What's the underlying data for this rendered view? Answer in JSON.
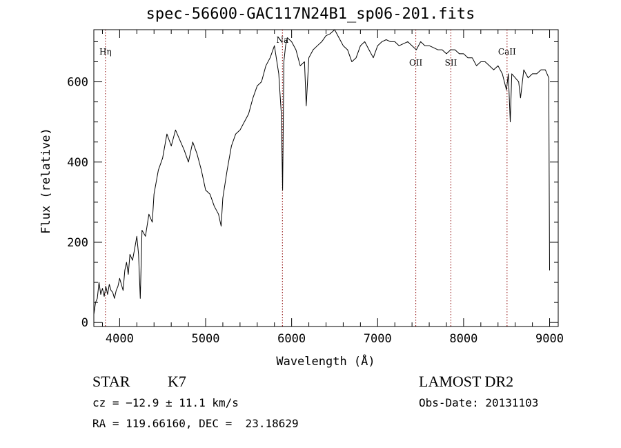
{
  "chart_data": {
    "type": "line",
    "title": "spec-56600-GAC117N24B1_sp06-201.fits",
    "xlabel": "Wavelength (Å)",
    "ylabel": "Flux (relative)",
    "xlim": [
      3700,
      9100
    ],
    "ylim": [
      -10,
      730
    ],
    "xticks": [
      4000,
      5000,
      6000,
      7000,
      8000,
      9000
    ],
    "xtick_labels": [
      "4000",
      "5000",
      "6000",
      "7000",
      "8000",
      "9000"
    ],
    "yticks": [
      0,
      200,
      400,
      600
    ],
    "ytick_labels": [
      "0",
      "200",
      "400",
      "600"
    ],
    "grid": false,
    "line_color": "#000000",
    "marker_color": "#8b0000",
    "lines": [
      {
        "label": "Hη",
        "wavelength": 3835
      },
      {
        "label": "Na",
        "wavelength": 5893
      },
      {
        "label": "OII",
        "wavelength": 7444
      },
      {
        "label": "SII",
        "wavelength": 7852
      },
      {
        "label": "CaII",
        "wavelength": 8505
      }
    ],
    "spectrum": {
      "x": [
        3700,
        3720,
        3740,
        3760,
        3780,
        3800,
        3820,
        3840,
        3860,
        3880,
        3900,
        3920,
        3940,
        3960,
        3980,
        4000,
        4020,
        4040,
        4060,
        4080,
        4100,
        4120,
        4150,
        4180,
        4200,
        4220,
        4240,
        4260,
        4300,
        4340,
        4380,
        4400,
        4450,
        4500,
        4550,
        4600,
        4650,
        4700,
        4750,
        4800,
        4850,
        4900,
        4950,
        5000,
        5050,
        5100,
        5150,
        5180,
        5200,
        5250,
        5300,
        5350,
        5400,
        5450,
        5500,
        5550,
        5600,
        5650,
        5700,
        5750,
        5800,
        5850,
        5880,
        5895,
        5910,
        5930,
        5950,
        6000,
        6050,
        6100,
        6150,
        6170,
        6200,
        6250,
        6300,
        6350,
        6400,
        6450,
        6500,
        6550,
        6600,
        6650,
        6700,
        6750,
        6800,
        6850,
        6900,
        6950,
        7000,
        7050,
        7100,
        7150,
        7200,
        7250,
        7300,
        7350,
        7400,
        7450,
        7500,
        7550,
        7600,
        7650,
        7700,
        7750,
        7800,
        7850,
        7900,
        7950,
        8000,
        8050,
        8100,
        8150,
        8200,
        8250,
        8300,
        8350,
        8400,
        8450,
        8498,
        8520,
        8542,
        8560,
        8600,
        8640,
        8662,
        8700,
        8750,
        8800,
        8850,
        8900,
        8950,
        8990,
        9000
      ],
      "y": [
        20,
        50,
        60,
        100,
        70,
        85,
        65,
        90,
        70,
        95,
        80,
        75,
        60,
        80,
        90,
        110,
        95,
        80,
        130,
        150,
        120,
        170,
        155,
        190,
        215,
        170,
        60,
        230,
        215,
        270,
        250,
        320,
        380,
        410,
        470,
        440,
        480,
        455,
        430,
        400,
        450,
        420,
        380,
        330,
        320,
        290,
        270,
        240,
        310,
        380,
        440,
        470,
        480,
        500,
        520,
        560,
        590,
        600,
        640,
        660,
        690,
        620,
        520,
        330,
        650,
        690,
        710,
        700,
        680,
        640,
        650,
        540,
        660,
        680,
        690,
        700,
        715,
        720,
        740,
        710,
        690,
        680,
        650,
        660,
        690,
        700,
        680,
        660,
        690,
        700,
        705,
        700,
        700,
        690,
        695,
        700,
        690,
        680,
        700,
        690,
        690,
        685,
        680,
        680,
        670,
        680,
        680,
        670,
        670,
        660,
        660,
        640,
        650,
        650,
        640,
        630,
        640,
        620,
        580,
        620,
        500,
        620,
        610,
        600,
        560,
        630,
        610,
        620,
        620,
        630,
        630,
        610,
        130
      ]
    }
  },
  "info": {
    "object_class": "STAR",
    "subclass": "K7",
    "survey": "LAMOST DR2",
    "cz": "cz = −12.9 ± 11.1 km/s",
    "obs_date": "Obs-Date: 20131103",
    "coords": "RA = 119.66160, DEC =  23.18629"
  }
}
